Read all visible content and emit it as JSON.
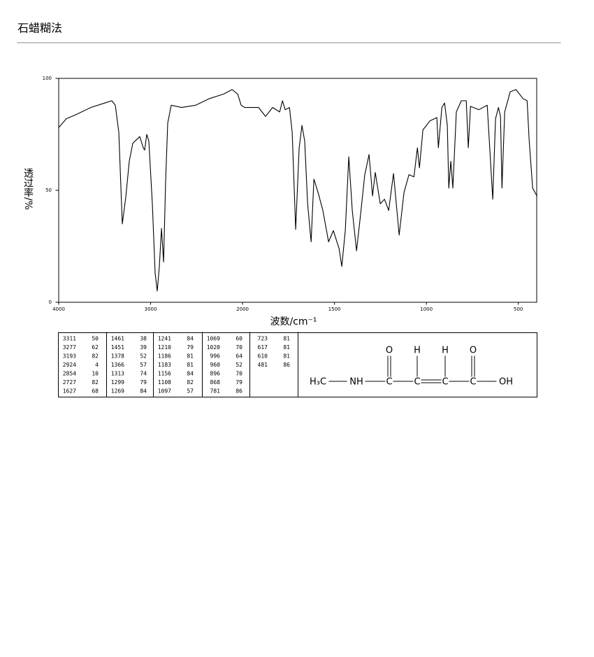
{
  "header": {
    "title": "石蜡糊法"
  },
  "chart_data": {
    "type": "line",
    "xlabel": "波数/cm⁻¹",
    "ylabel": "透过率/%",
    "xlim": [
      4000,
      400
    ],
    "xbreak": 2000,
    "ylim": [
      0,
      100
    ],
    "xticks": [
      4000,
      3000,
      2000,
      1500,
      1000,
      500
    ],
    "yticks": [
      0,
      50,
      100
    ],
    "color": "#000000",
    "x": [
      4000,
      3916,
      3802,
      3650,
      3498,
      3422,
      3384,
      3346,
      3308,
      3270,
      3232,
      3194,
      3118,
      3080,
      3065,
      3042,
      3019,
      2981,
      2951,
      2928,
      2905,
      2882,
      2859,
      2837,
      2814,
      2776,
      2662,
      2510,
      2357,
      2205,
      2114,
      2053,
      2015,
      1989,
      1913,
      1875,
      1837,
      1798,
      1783,
      1768,
      1745,
      1730,
      1711,
      1692,
      1677,
      1662,
      1646,
      1627,
      1612,
      1589,
      1563,
      1532,
      1506,
      1475,
      1460,
      1441,
      1422,
      1403,
      1380,
      1361,
      1335,
      1312,
      1293,
      1278,
      1251,
      1228,
      1205,
      1179,
      1148,
      1122,
      1095,
      1068,
      1049,
      1038,
      1019,
      981,
      943,
      935,
      916,
      901,
      886,
      878,
      867,
      856,
      837,
      810,
      783,
      772,
      760,
      715,
      669,
      650,
      639,
      624,
      608,
      597,
      589,
      574,
      544,
      513,
      475,
      452,
      441,
      422,
      399
    ],
    "y": [
      78,
      82,
      84,
      87,
      89,
      90,
      88,
      76,
      35,
      47,
      63,
      71,
      74,
      69,
      68,
      75,
      72,
      44,
      13,
      5,
      16,
      33,
      18,
      54,
      80,
      88,
      87,
      88,
      91,
      93,
      95,
      93,
      88,
      87,
      87,
      83,
      87,
      85,
      90,
      86,
      87,
      76,
      32.5,
      69,
      79,
      72,
      44,
      27,
      55,
      49,
      41,
      27,
      32,
      24,
      16,
      32,
      65,
      41,
      23,
      37,
      57,
      66,
      47.5,
      58,
      44,
      46,
      41,
      57.5,
      30,
      49,
      57,
      56,
      69,
      60,
      77,
      81,
      82.5,
      69,
      87,
      89,
      79,
      51,
      63,
      51,
      85,
      90,
      90,
      69,
      87.5,
      86,
      88,
      61.5,
      46,
      82,
      87,
      83,
      51,
      85,
      94,
      95,
      91,
      90,
      72.5,
      51,
      47.5
    ]
  },
  "peak_table": {
    "columns": [
      [
        [
          "3311",
          "50"
        ],
        [
          "3277",
          "62"
        ],
        [
          "3193",
          "82"
        ],
        [
          "2924",
          "4"
        ],
        [
          "2854",
          "10"
        ],
        [
          "2727",
          "82"
        ],
        [
          "1627",
          "68"
        ]
      ],
      [
        [
          "1461",
          "38"
        ],
        [
          "1451",
          "39"
        ],
        [
          "1378",
          "52"
        ],
        [
          "1366",
          "57"
        ],
        [
          "1313",
          "74"
        ],
        [
          "1299",
          "79"
        ],
        [
          "1269",
          "84"
        ]
      ],
      [
        [
          "1241",
          "84"
        ],
        [
          "1210",
          "79"
        ],
        [
          "1186",
          "81"
        ],
        [
          "1183",
          "81"
        ],
        [
          "1156",
          "84"
        ],
        [
          "1108",
          "82"
        ],
        [
          "1097",
          "57"
        ]
      ],
      [
        [
          "1069",
          "60"
        ],
        [
          "1020",
          "70"
        ],
        [
          "996",
          "64"
        ],
        [
          "960",
          "52"
        ],
        [
          "896",
          "70"
        ],
        [
          "868",
          "79"
        ],
        [
          "781",
          "86"
        ]
      ],
      [
        [
          "723",
          "81"
        ],
        [
          "617",
          "81"
        ],
        [
          "610",
          "81"
        ],
        [
          "481",
          "86"
        ]
      ]
    ]
  },
  "structure": {
    "atoms": [
      "H₃C",
      "NH",
      "C",
      "C",
      "C",
      "C",
      "OH"
    ],
    "above": [
      "O",
      "H",
      "H",
      "O"
    ]
  }
}
